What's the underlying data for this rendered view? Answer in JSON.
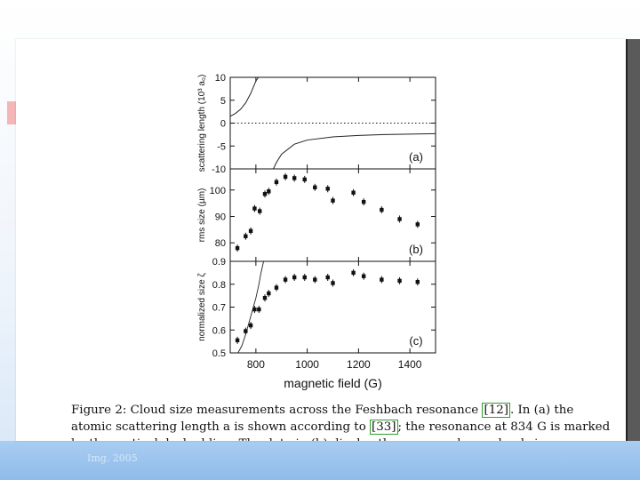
{
  "figure": {
    "caption_lines": [
      "Figure 2:  Cloud size measurements across the Feshbach resonance [12].  In (a) the",
      "atomic scattering length a is shown according to [33]; the resonance at 834 G is marked",
      "by the vertical dashed line.  The data in (b) display the measured rms cloud size."
    ],
    "caption_refs": [
      "[12]",
      "[33]"
    ],
    "footer": "Img. 2005"
  },
  "chart_data": [
    {
      "type": "line",
      "panel": "(a)",
      "ylabel": "scattering length (10³ a₀)",
      "yticks": [
        10,
        5,
        0,
        -5,
        -10
      ],
      "ylim": [
        -10,
        10
      ],
      "xlim": [
        700,
        1500
      ],
      "series": [
        {
          "name": "left branch",
          "x": [
            700,
            720,
            740,
            760,
            780,
            800,
            810
          ],
          "y": [
            1.5,
            2.1,
            3.0,
            4.4,
            6.5,
            9.2,
            10.0
          ]
        },
        {
          "name": "right branch",
          "x": [
            868,
            880,
            900,
            950,
            1000,
            1100,
            1200,
            1300,
            1400,
            1500
          ],
          "y": [
            -10,
            -8.6,
            -6.8,
            -4.6,
            -3.7,
            -3.0,
            -2.7,
            -2.5,
            -2.4,
            -2.3
          ]
        }
      ],
      "zero_line": "dotted"
    },
    {
      "type": "scatter",
      "panel": "(b)",
      "ylabel": "rms size (µm)",
      "yticks": [
        100,
        90,
        80
      ],
      "ylim": [
        73,
        108
      ],
      "xlim": [
        700,
        1500
      ],
      "x": [
        728,
        760,
        780,
        795,
        815,
        835,
        850,
        880,
        915,
        950,
        990,
        1030,
        1080,
        1100,
        1180,
        1220,
        1290,
        1360,
        1430
      ],
      "y": [
        78.0,
        82.5,
        84.5,
        93.0,
        92.0,
        98.5,
        99.5,
        103.0,
        105.0,
        104.5,
        104.0,
        101.0,
        100.5,
        96.0,
        99.0,
        95.5,
        92.5,
        89.0,
        87.0
      ]
    },
    {
      "type": "scatter",
      "panel": "(c)",
      "ylabel": "normalized size ζ",
      "yticks": [
        0.9,
        0.8,
        0.7,
        0.6,
        0.5
      ],
      "ylim": [
        0.5,
        0.9
      ],
      "xlim": [
        700,
        1500
      ],
      "xlabel": "magnetic field (G)",
      "xticks": [
        800,
        1000,
        1200,
        1400
      ],
      "x": [
        728,
        760,
        780,
        795,
        812,
        835,
        850,
        880,
        915,
        950,
        990,
        1030,
        1080,
        1100,
        1180,
        1220,
        1290,
        1360,
        1430
      ],
      "y": [
        0.555,
        0.595,
        0.62,
        0.69,
        0.69,
        0.74,
        0.76,
        0.785,
        0.82,
        0.83,
        0.83,
        0.82,
        0.83,
        0.805,
        0.85,
        0.835,
        0.82,
        0.815,
        0.81
      ],
      "theory_curve": {
        "x": [
          730,
          745,
          760,
          775,
          790,
          800,
          810,
          820,
          830
        ],
        "y": [
          0.5,
          0.53,
          0.58,
          0.64,
          0.7,
          0.74,
          0.79,
          0.85,
          0.9
        ]
      }
    }
  ]
}
